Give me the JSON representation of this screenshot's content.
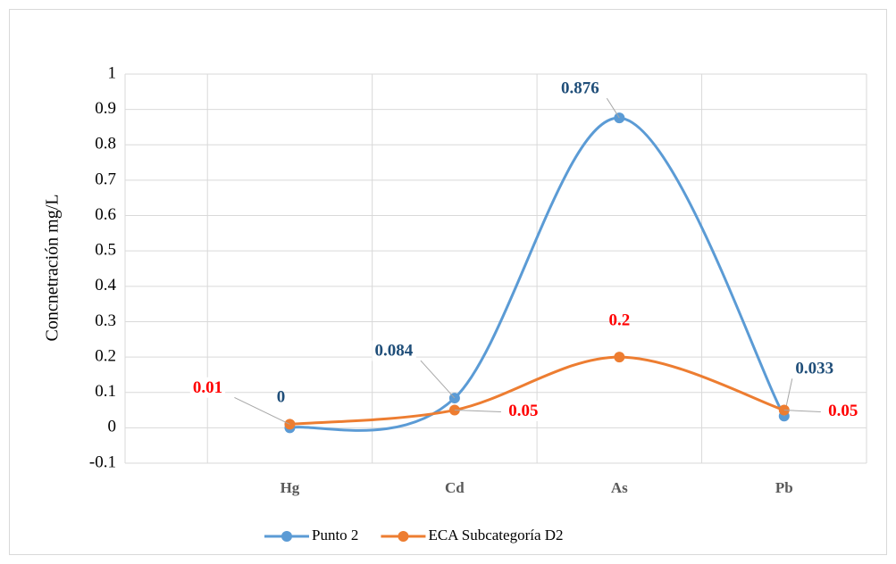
{
  "chart_data": {
    "type": "line",
    "y_label": "Concnetración mg/L",
    "categories": [
      "Hg",
      "Cd",
      "As",
      "Pb"
    ],
    "series": [
      {
        "name": "Punto 2",
        "color": "#5b9bd5",
        "label_color": "#1f4e79",
        "values": [
          0,
          0.084,
          0.876,
          0.033
        ]
      },
      {
        "name": "ECA Subcategoría D2",
        "color": "#ed7d31",
        "label_color": "#ff0000",
        "values": [
          0.01,
          0.05,
          0.2,
          0.05
        ]
      }
    ],
    "ylim": [
      -0.1,
      1
    ],
    "yticks": [
      -0.1,
      0,
      0.1,
      0.2,
      0.3,
      0.4,
      0.5,
      0.6,
      0.7,
      0.8,
      0.9,
      1
    ],
    "grid": true,
    "smooth": true,
    "legend": "bottom"
  }
}
